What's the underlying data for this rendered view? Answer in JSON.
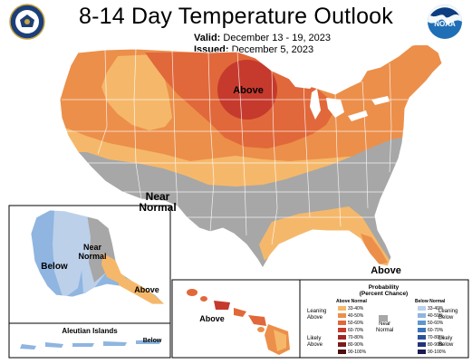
{
  "header": {
    "title": "8-14 Day Temperature Outlook",
    "valid_label": "Valid:",
    "valid_value": "December 13 - 19, 2023",
    "issued_label": "Issued:",
    "issued_value": "December 5, 2023"
  },
  "logos": {
    "left": "commerce-seal-icon",
    "right": "noaa-logo-icon"
  },
  "map_labels": {
    "above_north": "Above",
    "near_normal_conus": "Near\nNormal",
    "above_florida": "Above",
    "alaska_below": "Below",
    "alaska_near_normal": "Near\nNormal",
    "alaska_above": "Above",
    "hawaii_above": "Above",
    "aleutian_title": "Aleutian Islands",
    "aleutian_below": "Below"
  },
  "legend": {
    "title": "Probability\n(Percent Chance)",
    "above_header": "Above Normal",
    "below_header": "Below Normal",
    "near_normal": "Near\nNormal",
    "leaning_above": "Leaning\nAbove",
    "likely_above": "Likely\nAbove",
    "leaning_below": "Leaning\nBelow",
    "likely_below": "Likely\nBelow",
    "above_bins": [
      {
        "label": "33-40%",
        "color": "#f5b86a"
      },
      {
        "label": "40-50%",
        "color": "#ec8f4a"
      },
      {
        "label": "50-60%",
        "color": "#e1683a"
      },
      {
        "label": "60-70%",
        "color": "#c53a2d"
      },
      {
        "label": "70-80%",
        "color": "#a02624"
      },
      {
        "label": "80-90%",
        "color": "#7a1a1c"
      },
      {
        "label": "90-100%",
        "color": "#4d0d0f"
      }
    ],
    "below_bins": [
      {
        "label": "33-40%",
        "color": "#bcd0ea"
      },
      {
        "label": "40-50%",
        "color": "#8fb5e0"
      },
      {
        "label": "50-60%",
        "color": "#5f96d2"
      },
      {
        "label": "60-70%",
        "color": "#3c73bd"
      },
      {
        "label": "70-80%",
        "color": "#2b519c"
      },
      {
        "label": "80-90%",
        "color": "#23307c"
      },
      {
        "label": "90-100%",
        "color": "#1a1a55"
      }
    ],
    "near_color": "#a7a7a7"
  },
  "colors": {
    "above_33_40": "#f5b86a",
    "above_40_50": "#ec8f4a",
    "above_50_60": "#e1683a",
    "above_60_70": "#c53a2d",
    "near_normal": "#a7a7a7",
    "below_33_40": "#bcd0ea",
    "below_40_50": "#8fb5e0",
    "water": "#ffffff",
    "border": "#ffffff"
  }
}
